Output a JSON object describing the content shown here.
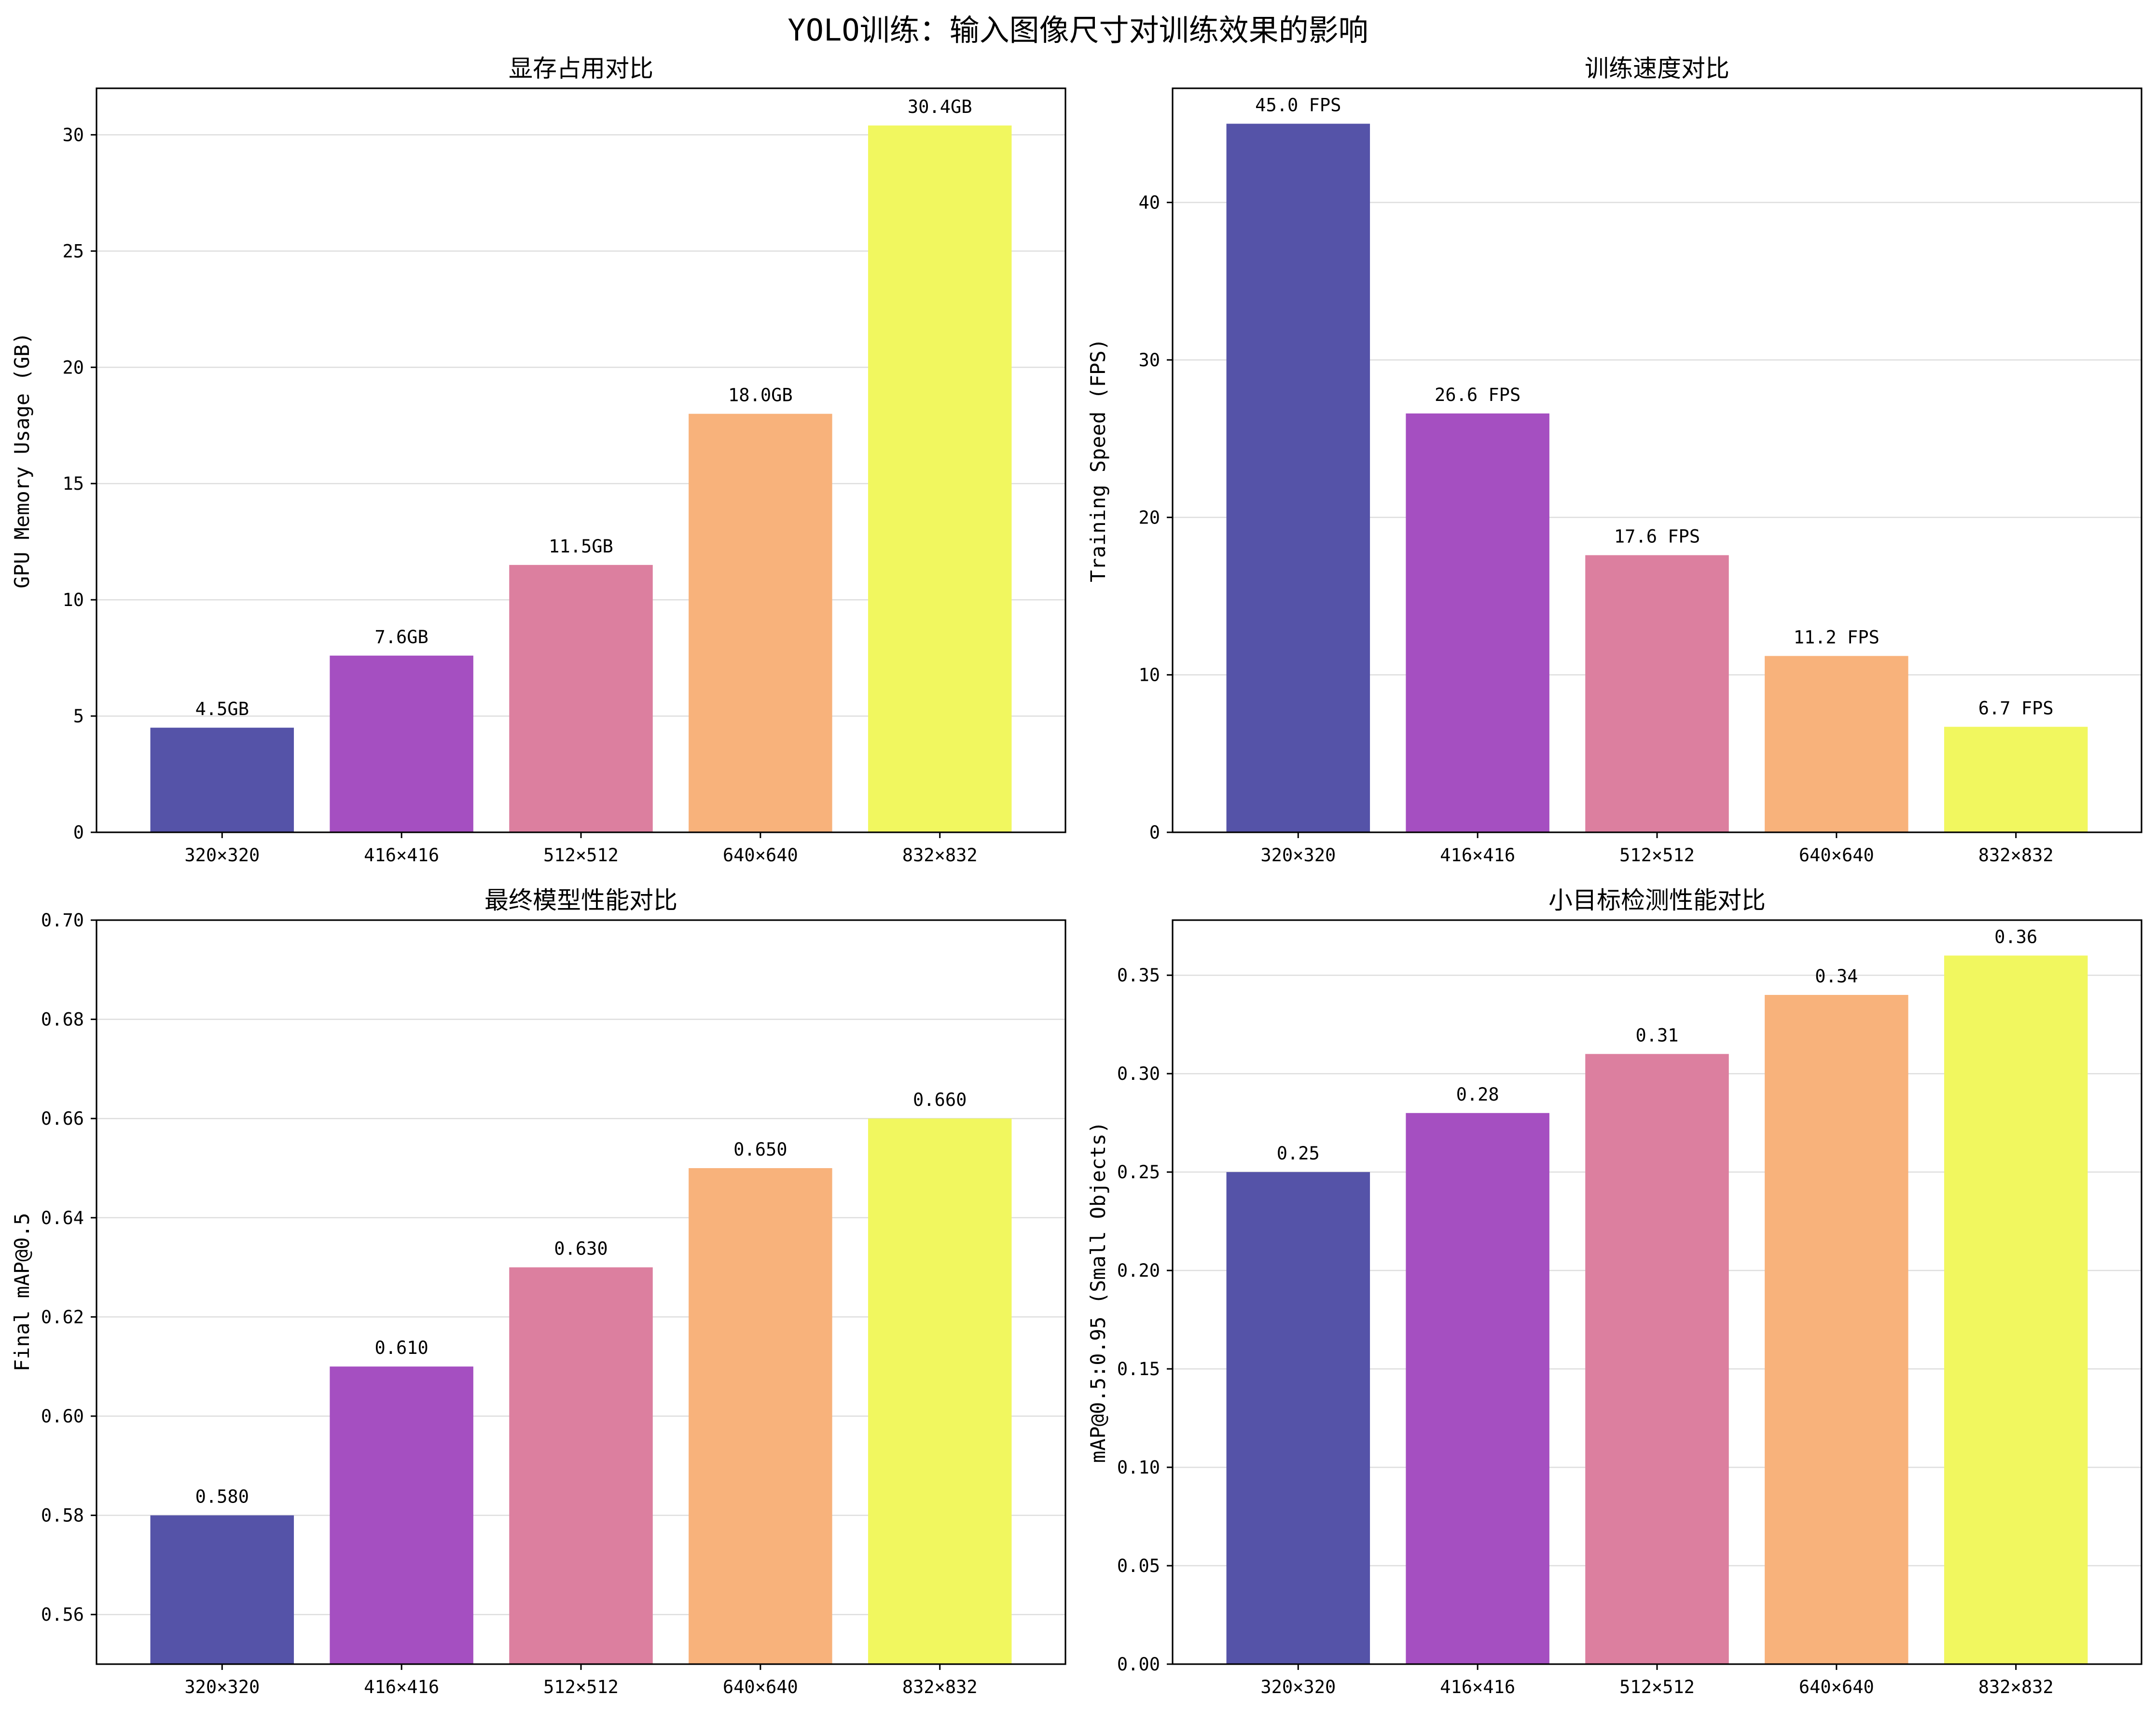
{
  "figure_title": "YOLO训练：输入图像尺寸对训练效果的影响",
  "chart_data": [
    {
      "type": "bar",
      "title": "显存占用对比",
      "ylabel": "GPU Memory Usage (GB)",
      "xlabel": "",
      "categories": [
        "320×320",
        "416×416",
        "512×512",
        "640×640",
        "832×832"
      ],
      "values": [
        4.5,
        7.6,
        11.5,
        18.0,
        30.4
      ],
      "value_labels": [
        "4.5GB",
        "7.6GB",
        "11.5GB",
        "18.0GB",
        "30.4GB"
      ],
      "ylim": [
        0,
        32
      ],
      "yticks": [
        0,
        5,
        10,
        15,
        20,
        25,
        30
      ],
      "ytick_labels": [
        "0",
        "5",
        "10",
        "15",
        "20",
        "25",
        "30"
      ],
      "grid": "y",
      "colors": [
        "#5553a8",
        "#a54fc1",
        "#dc7f9f",
        "#f8b27b",
        "#f1f75f"
      ]
    },
    {
      "type": "bar",
      "title": "训练速度对比",
      "ylabel": "Training Speed (FPS)",
      "xlabel": "",
      "categories": [
        "320×320",
        "416×416",
        "512×512",
        "640×640",
        "832×832"
      ],
      "values": [
        45.0,
        26.6,
        17.6,
        11.2,
        6.7
      ],
      "value_labels": [
        "45.0 FPS",
        "26.6 FPS",
        "17.6 FPS",
        "11.2 FPS",
        "6.7 FPS"
      ],
      "ylim": [
        0,
        47.25
      ],
      "yticks": [
        0,
        10,
        20,
        30,
        40
      ],
      "ytick_labels": [
        "0",
        "10",
        "20",
        "30",
        "40"
      ],
      "grid": "y",
      "colors": [
        "#5553a8",
        "#a54fc1",
        "#dc7f9f",
        "#f8b27b",
        "#f1f75f"
      ]
    },
    {
      "type": "bar",
      "title": "最终模型性能对比",
      "ylabel": "Final mAP@0.5",
      "xlabel": "",
      "categories": [
        "320×320",
        "416×416",
        "512×512",
        "640×640",
        "832×832"
      ],
      "values": [
        0.58,
        0.61,
        0.63,
        0.65,
        0.66
      ],
      "value_labels": [
        "0.580",
        "0.610",
        "0.630",
        "0.650",
        "0.660"
      ],
      "ylim": [
        0.55,
        0.7
      ],
      "yticks": [
        0.56,
        0.58,
        0.6,
        0.62,
        0.64,
        0.66,
        0.68,
        0.7
      ],
      "ytick_labels": [
        "0.56",
        "0.58",
        "0.60",
        "0.62",
        "0.64",
        "0.66",
        "0.68",
        "0.70"
      ],
      "grid": "y",
      "colors": [
        "#5553a8",
        "#a54fc1",
        "#dc7f9f",
        "#f8b27b",
        "#f1f75f"
      ]
    },
    {
      "type": "bar",
      "title": "小目标检测性能对比",
      "ylabel": "mAP@0.5:0.95 (Small Objects)",
      "xlabel": "",
      "categories": [
        "320×320",
        "416×416",
        "512×512",
        "640×640",
        "832×832"
      ],
      "values": [
        0.25,
        0.28,
        0.31,
        0.34,
        0.36
      ],
      "value_labels": [
        "0.25",
        "0.28",
        "0.31",
        "0.34",
        "0.36"
      ],
      "ylim": [
        0,
        0.378
      ],
      "yticks": [
        0.0,
        0.05,
        0.1,
        0.15,
        0.2,
        0.25,
        0.3,
        0.35
      ],
      "ytick_labels": [
        "0.00",
        "0.05",
        "0.10",
        "0.15",
        "0.20",
        "0.25",
        "0.30",
        "0.35"
      ],
      "grid": "y",
      "colors": [
        "#5553a8",
        "#a54fc1",
        "#dc7f9f",
        "#f8b27b",
        "#f1f75f"
      ]
    }
  ]
}
